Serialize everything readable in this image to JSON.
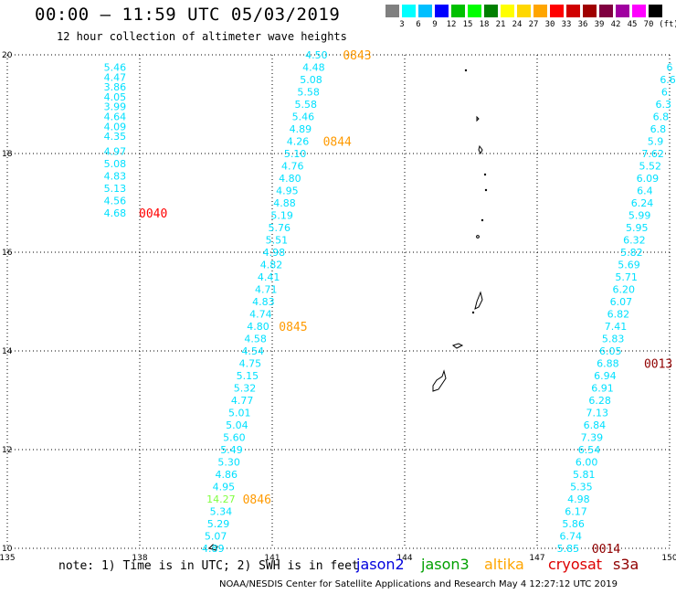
{
  "header": {
    "title": "00:00 – 11:59 UTC 05/03/2019",
    "subtitle": "12 hour collection of altimeter wave heights"
  },
  "color_scale": {
    "unit": "(ft)",
    "colors": [
      "#808080",
      "#00ffff",
      "#00bfff",
      "#0000ff",
      "#00c000",
      "#00ff00",
      "#008000",
      "#ffff00",
      "#ffd700",
      "#ffa500",
      "#ff0000",
      "#d00000",
      "#a00000",
      "#800040",
      "#a000a0",
      "#ff00ff",
      "#000000"
    ],
    "labels": [
      "3",
      "6",
      "9",
      "12",
      "15",
      "18",
      "21",
      "24",
      "27",
      "30",
      "33",
      "36",
      "39",
      "42",
      "45",
      "70"
    ]
  },
  "footer": {
    "note": "note: 1) Time is in UTC; 2) SWH is in feet",
    "satellites": [
      {
        "name": "jason2",
        "color": "#0000dd"
      },
      {
        "name": "jason3",
        "color": "#00a000"
      },
      {
        "name": "altika",
        "color": "#ffa500"
      },
      {
        "name": "cryosat",
        "color": "#dd0000"
      },
      {
        "name": "s3a",
        "color": "#900000"
      }
    ],
    "credit": "NOAA/NESDIS Center for Satellite Applications and Research   May  4 12:27:12 UTC 2019"
  },
  "chart_data": {
    "type": "scatter",
    "title": "00:00 – 11:59 UTC 05/03/2019",
    "xlim": [
      135,
      150
    ],
    "ylim": [
      10,
      20
    ],
    "x_ticks": [
      "135",
      "138",
      "141",
      "144",
      "147",
      "150"
    ],
    "y_ticks": [
      "10",
      "12",
      "14",
      "16",
      "18",
      "20"
    ],
    "grid": true,
    "series": [
      {
        "name": "track-west",
        "color": "#00e0ff",
        "points": [
          [
            137.44,
            19.75,
            "5.46"
          ],
          [
            137.44,
            19.55,
            "4.47"
          ],
          [
            137.44,
            19.35,
            "3.86"
          ],
          [
            137.44,
            19.15,
            "4.05"
          ],
          [
            137.44,
            18.95,
            "3.99"
          ],
          [
            137.44,
            18.75,
            "4.64"
          ],
          [
            137.44,
            18.55,
            "4.09"
          ],
          [
            137.44,
            18.35,
            "4.35"
          ],
          [
            137.44,
            18.05,
            "4.97"
          ],
          [
            137.44,
            17.8,
            "5.08"
          ],
          [
            137.44,
            17.55,
            "4.83"
          ],
          [
            137.44,
            17.3,
            "5.13"
          ],
          [
            137.44,
            17.05,
            "4.56"
          ],
          [
            137.44,
            16.8,
            "4.68"
          ]
        ]
      },
      {
        "name": "track-central",
        "color": "#00e0ff",
        "points": [
          [
            142.0,
            20.0,
            "4.50"
          ],
          [
            141.94,
            19.75,
            "4.48"
          ],
          [
            141.88,
            19.5,
            "5.08"
          ],
          [
            141.82,
            19.25,
            "5.58"
          ],
          [
            141.76,
            19.0,
            "5.58"
          ],
          [
            141.7,
            18.75,
            "5.46"
          ],
          [
            141.64,
            18.5,
            "4.89"
          ],
          [
            141.58,
            18.25,
            "4.26"
          ],
          [
            141.52,
            18.0,
            "5.10"
          ],
          [
            141.46,
            17.75,
            "4.76"
          ],
          [
            141.4,
            17.5,
            "4.80"
          ],
          [
            141.34,
            17.25,
            "4.95"
          ],
          [
            141.28,
            17.0,
            "4.88"
          ],
          [
            141.22,
            16.75,
            "5.19"
          ],
          [
            141.16,
            16.5,
            "5.76"
          ],
          [
            141.1,
            16.25,
            "5.51"
          ],
          [
            141.04,
            16.0,
            "4.98"
          ],
          [
            140.98,
            15.75,
            "4.82"
          ],
          [
            140.92,
            15.5,
            "4.41"
          ],
          [
            140.86,
            15.25,
            "4.71"
          ],
          [
            140.8,
            15.0,
            "4.83"
          ],
          [
            140.74,
            14.75,
            "4.74"
          ],
          [
            140.68,
            14.5,
            "4.80"
          ],
          [
            140.62,
            14.25,
            "4.58"
          ],
          [
            140.56,
            14.0,
            "4.54"
          ],
          [
            140.5,
            13.75,
            "4.75"
          ],
          [
            140.44,
            13.5,
            "5.15"
          ],
          [
            140.38,
            13.25,
            "5.32"
          ],
          [
            140.32,
            13.0,
            "4.77"
          ],
          [
            140.26,
            12.75,
            "5.01"
          ],
          [
            140.2,
            12.5,
            "5.04"
          ],
          [
            140.14,
            12.25,
            "5.60"
          ],
          [
            140.08,
            12.0,
            "5.49"
          ],
          [
            140.02,
            11.75,
            "5.30"
          ],
          [
            139.96,
            11.5,
            "4.86"
          ],
          [
            139.9,
            11.25,
            "4.95"
          ],
          [
            139.84,
            11.0,
            "14.27"
          ],
          [
            139.84,
            10.75,
            "5.34"
          ],
          [
            139.78,
            10.5,
            "5.29"
          ],
          [
            139.72,
            10.25,
            "5.07"
          ],
          [
            139.66,
            10.0,
            "4.89"
          ]
        ]
      },
      {
        "name": "track-east",
        "color": "#00e0ff",
        "points": [
          [
            150.0,
            19.75,
            "6"
          ],
          [
            149.96,
            19.5,
            "6.6"
          ],
          [
            149.92,
            19.25,
            "6."
          ],
          [
            149.86,
            19.0,
            "6.3"
          ],
          [
            149.8,
            18.75,
            "6.8"
          ],
          [
            149.74,
            18.5,
            "6.8"
          ],
          [
            149.68,
            18.25,
            "5.9"
          ],
          [
            149.62,
            18.0,
            "7.62"
          ],
          [
            149.56,
            17.75,
            "5.52"
          ],
          [
            149.5,
            17.5,
            "6.09"
          ],
          [
            149.44,
            17.25,
            "6.4"
          ],
          [
            149.38,
            17.0,
            "6.24"
          ],
          [
            149.32,
            16.75,
            "5.99"
          ],
          [
            149.26,
            16.5,
            "5.95"
          ],
          [
            149.2,
            16.25,
            "6.32"
          ],
          [
            149.14,
            16.0,
            "5.82"
          ],
          [
            149.08,
            15.75,
            "5.69"
          ],
          [
            149.02,
            15.5,
            "5.71"
          ],
          [
            148.96,
            15.25,
            "6.20"
          ],
          [
            148.9,
            15.0,
            "6.07"
          ],
          [
            148.84,
            14.75,
            "6.82"
          ],
          [
            148.78,
            14.5,
            "7.41"
          ],
          [
            148.72,
            14.25,
            "5.83"
          ],
          [
            148.66,
            14.0,
            "6.05"
          ],
          [
            148.6,
            13.75,
            "6.88"
          ],
          [
            148.54,
            13.5,
            "6.94"
          ],
          [
            148.48,
            13.25,
            "6.91"
          ],
          [
            148.42,
            13.0,
            "6.28"
          ],
          [
            148.36,
            12.75,
            "7.13"
          ],
          [
            148.3,
            12.5,
            "6.84"
          ],
          [
            148.24,
            12.25,
            "7.39"
          ],
          [
            148.18,
            12.0,
            "6.54"
          ],
          [
            148.12,
            11.75,
            "6.00"
          ],
          [
            148.06,
            11.5,
            "5.81"
          ],
          [
            148.0,
            11.25,
            "5.35"
          ],
          [
            147.94,
            11.0,
            "4.98"
          ],
          [
            147.88,
            10.75,
            "6.17"
          ],
          [
            147.82,
            10.5,
            "5.86"
          ],
          [
            147.76,
            10.25,
            "6.74"
          ],
          [
            147.7,
            10.0,
            "5.85"
          ]
        ]
      }
    ],
    "annotations": [
      {
        "text": "0843",
        "x": 142.6,
        "y": 20.0,
        "color": "#ff9a00"
      },
      {
        "text": "0844",
        "x": 142.15,
        "y": 18.25,
        "color": "#ff9a00"
      },
      {
        "text": "0040",
        "x": 137.98,
        "y": 16.8,
        "color": "#ff0000"
      },
      {
        "text": "0845",
        "x": 141.15,
        "y": 14.5,
        "color": "#ff9a00"
      },
      {
        "text": "0846",
        "x": 140.33,
        "y": 11.0,
        "color": "#ff9a00"
      },
      {
        "text": "0013",
        "x": 149.42,
        "y": 13.75,
        "color": "#900000"
      },
      {
        "text": "0014",
        "x": 148.24,
        "y": 10.0,
        "color": "#900000"
      }
    ],
    "highlight_value_color": "#80ff40"
  }
}
